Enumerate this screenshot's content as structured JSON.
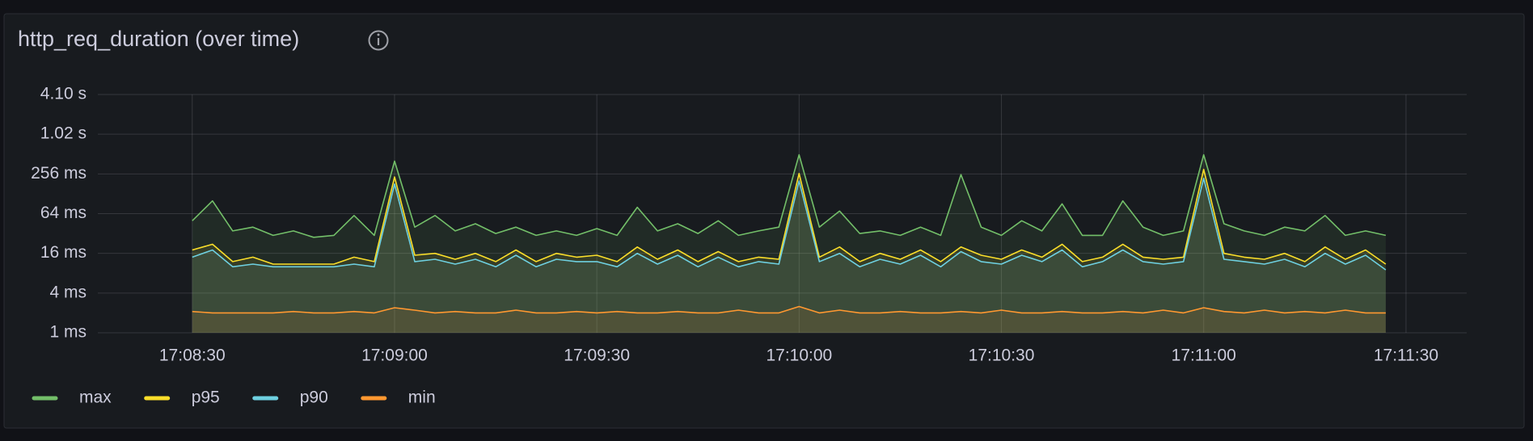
{
  "chart_data": {
    "type": "line",
    "title": "http_req_duration (over time)",
    "x": [
      "17:08:30",
      "17:08:33",
      "17:08:36",
      "17:08:39",
      "17:08:42",
      "17:08:45",
      "17:08:48",
      "17:08:51",
      "17:08:54",
      "17:08:57",
      "17:09:00",
      "17:09:03",
      "17:09:06",
      "17:09:09",
      "17:09:12",
      "17:09:15",
      "17:09:18",
      "17:09:21",
      "17:09:24",
      "17:09:27",
      "17:09:30",
      "17:09:33",
      "17:09:36",
      "17:09:39",
      "17:09:42",
      "17:09:45",
      "17:09:48",
      "17:09:51",
      "17:09:54",
      "17:09:57",
      "17:10:00",
      "17:10:03",
      "17:10:06",
      "17:10:09",
      "17:10:12",
      "17:10:15",
      "17:10:18",
      "17:10:21",
      "17:10:24",
      "17:10:27",
      "17:10:30",
      "17:10:33",
      "17:10:36",
      "17:10:39",
      "17:10:42",
      "17:10:45",
      "17:10:48",
      "17:10:51",
      "17:10:54",
      "17:10:57",
      "17:11:00",
      "17:11:03",
      "17:11:06",
      "17:11:09",
      "17:11:12",
      "17:11:15",
      "17:11:18",
      "17:11:21",
      "17:11:24",
      "17:11:27"
    ],
    "series": [
      {
        "name": "max",
        "color": "#73bf69",
        "values": [
          50,
          100,
          35,
          40,
          30,
          35,
          28,
          30,
          60,
          30,
          400,
          40,
          60,
          35,
          45,
          32,
          40,
          30,
          35,
          30,
          38,
          30,
          80,
          35,
          45,
          32,
          50,
          30,
          35,
          40,
          500,
          40,
          70,
          32,
          35,
          30,
          40,
          30,
          250,
          40,
          30,
          50,
          35,
          90,
          30,
          30,
          100,
          40,
          30,
          35,
          500,
          45,
          35,
          30,
          40,
          35,
          60,
          30,
          35,
          30
        ]
      },
      {
        "name": "p95",
        "color": "#fade2a",
        "values": [
          18,
          22,
          12,
          14,
          11,
          11,
          11,
          11,
          14,
          12,
          230,
          15,
          16,
          13,
          16,
          12,
          18,
          12,
          16,
          14,
          15,
          12,
          20,
          13,
          18,
          12,
          17,
          12,
          14,
          13,
          260,
          14,
          20,
          12,
          16,
          13,
          18,
          12,
          20,
          15,
          13,
          18,
          14,
          22,
          12,
          14,
          22,
          14,
          13,
          14,
          300,
          16,
          14,
          13,
          16,
          12,
          20,
          13,
          18,
          11
        ]
      },
      {
        "name": "p90",
        "color": "#6ed0e0",
        "values": [
          14,
          18,
          10,
          11,
          10,
          10,
          10,
          10,
          11,
          10,
          180,
          12,
          13,
          11,
          13,
          10,
          15,
          10,
          13,
          12,
          12,
          10,
          16,
          11,
          15,
          10,
          14,
          10,
          12,
          11,
          200,
          12,
          16,
          10,
          13,
          11,
          15,
          10,
          17,
          12,
          11,
          15,
          12,
          18,
          10,
          12,
          18,
          12,
          11,
          12,
          220,
          13,
          12,
          11,
          13,
          10,
          16,
          11,
          15,
          9
        ]
      },
      {
        "name": "min",
        "color": "#ff9830",
        "values": [
          2.1,
          2,
          2,
          2,
          2,
          2.1,
          2,
          2,
          2.1,
          2,
          2.4,
          2.2,
          2,
          2.1,
          2,
          2,
          2.2,
          2,
          2,
          2.1,
          2,
          2.1,
          2,
          2,
          2.1,
          2,
          2,
          2.2,
          2,
          2,
          2.5,
          2,
          2.2,
          2,
          2,
          2.1,
          2,
          2,
          2.1,
          2,
          2.2,
          2,
          2,
          2.1,
          2,
          2,
          2.1,
          2,
          2.2,
          2,
          2.4,
          2.1,
          2,
          2.2,
          2,
          2.1,
          2,
          2.2,
          2,
          2
        ]
      }
    ],
    "xlim": [
      "17:08:16",
      "17:11:39"
    ],
    "xticks": [
      "17:08:30",
      "17:09:00",
      "17:09:30",
      "17:10:00",
      "17:10:30",
      "17:11:00",
      "17:11:30"
    ],
    "ylim": [
      1,
      4096
    ],
    "log_scale": true,
    "yticks": [
      {
        "value": 1,
        "label": "1 ms"
      },
      {
        "value": 4,
        "label": "4 ms"
      },
      {
        "value": 16,
        "label": "16 ms"
      },
      {
        "value": 64,
        "label": "64 ms"
      },
      {
        "value": 256,
        "label": "256 ms"
      },
      {
        "value": 1024,
        "label": "1.02 s"
      },
      {
        "value": 4096,
        "label": "4.10 s"
      }
    ],
    "grid": true,
    "legend": "bottom"
  }
}
